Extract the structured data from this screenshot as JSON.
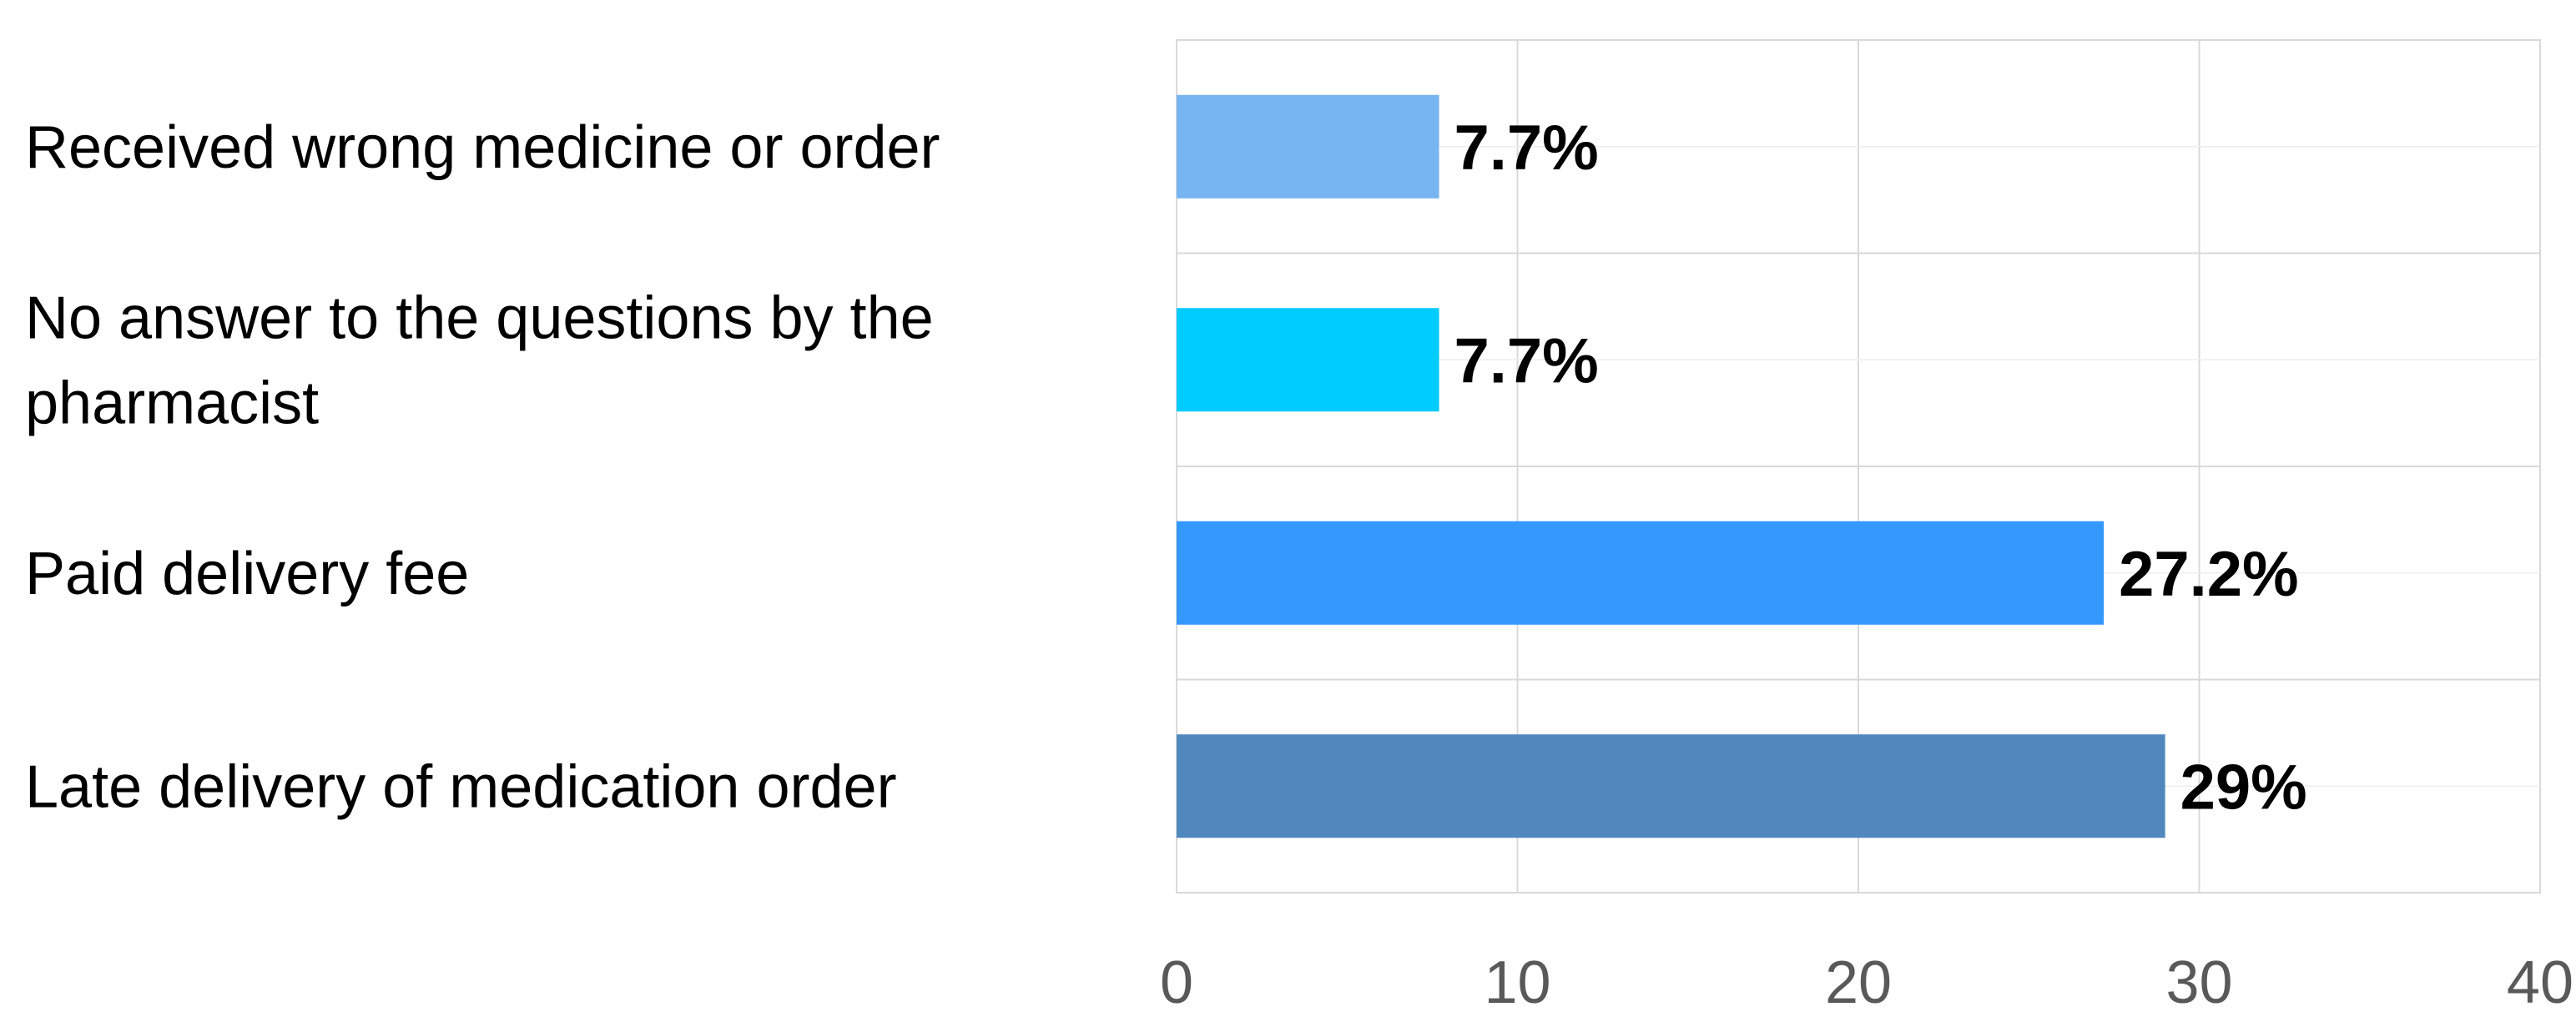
{
  "chart_data": {
    "type": "bar",
    "orientation": "horizontal",
    "categories": [
      "Received wrong medicine or order",
      "No answer to the questions by the pharmacist",
      "Paid delivery fee",
      "Late delivery of medication order"
    ],
    "category_label_lines": [
      [
        "Received wrong medicine or order"
      ],
      [
        "No answer to the questions by the",
        "pharmacist"
      ],
      [
        "Paid delivery fee"
      ],
      [
        "Late delivery of medication order"
      ]
    ],
    "values": [
      7.7,
      7.7,
      27.2,
      29
    ],
    "data_labels": [
      "7.7%",
      "7.7%",
      "27.2%",
      "29%"
    ],
    "bar_colors": [
      "#76B5F2",
      "#00CCFF",
      "#3399FF",
      "#5088BE"
    ],
    "xlim": [
      0,
      40
    ],
    "xticks": [
      0,
      10,
      20,
      30,
      40
    ],
    "xtick_labels": [
      "0",
      "10",
      "20",
      "30",
      "40"
    ],
    "title": "",
    "xlabel": "",
    "ylabel": "",
    "grid": true,
    "legend": "none"
  }
}
